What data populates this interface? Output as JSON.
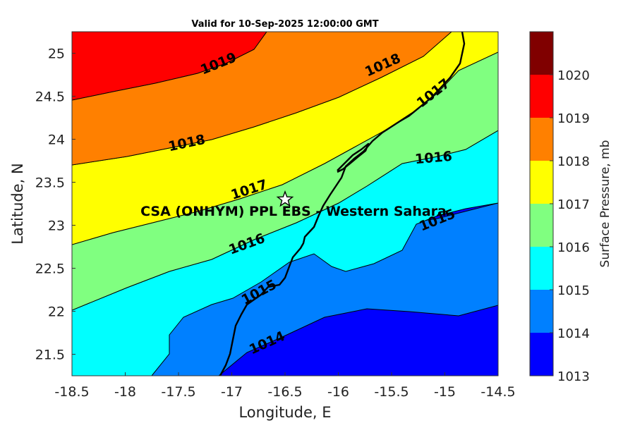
{
  "title": "Valid for 10-Sep-2025 12:00:00 GMT",
  "xlabel": "Longitude, E",
  "ylabel": "Latitude, N",
  "colorbar_label": "Surface Pressure, mb",
  "site_label": "CSA (ONHYM) PPL EBS - Western Sahara",
  "site": {
    "lon": -16.5,
    "lat": 23.3
  },
  "xticks": [
    "-18.5",
    "-18",
    "-17.5",
    "-17",
    "-16.5",
    "-16",
    "-15.5",
    "-15",
    "-14.5"
  ],
  "yticks": [
    "21.5",
    "22",
    "22.5",
    "23",
    "23.5",
    "24",
    "24.5",
    "25"
  ],
  "colorbar": {
    "levels": [
      "1013",
      "1014",
      "1015",
      "1016",
      "1017",
      "1018",
      "1019",
      "1020"
    ],
    "colors": [
      "#0000ff",
      "#0080ff",
      "#00ffff",
      "#80ff80",
      "#ffff00",
      "#ff8000",
      "#ff0000",
      "#800000"
    ]
  },
  "contour_labels": {
    "l1019": "1019",
    "l1018a": "1018",
    "l1018b": "1018",
    "l1017a": "1017",
    "l1017b": "1017",
    "l1016a": "1016",
    "l1016b": "1016",
    "l1015a": "1015",
    "l1015b": "1015",
    "l1014": "1014"
  },
  "chart_data": {
    "type": "contour",
    "variable": "Surface Pressure",
    "units": "mb",
    "xlim": [
      -18.5,
      -14.5
    ],
    "ylim": [
      21.25,
      25.25
    ],
    "levels": [
      1013,
      1014,
      1015,
      1016,
      1017,
      1018,
      1019,
      1020
    ],
    "marker": {
      "lon": -16.5,
      "lat": 23.3,
      "symbol": "star"
    }
  }
}
